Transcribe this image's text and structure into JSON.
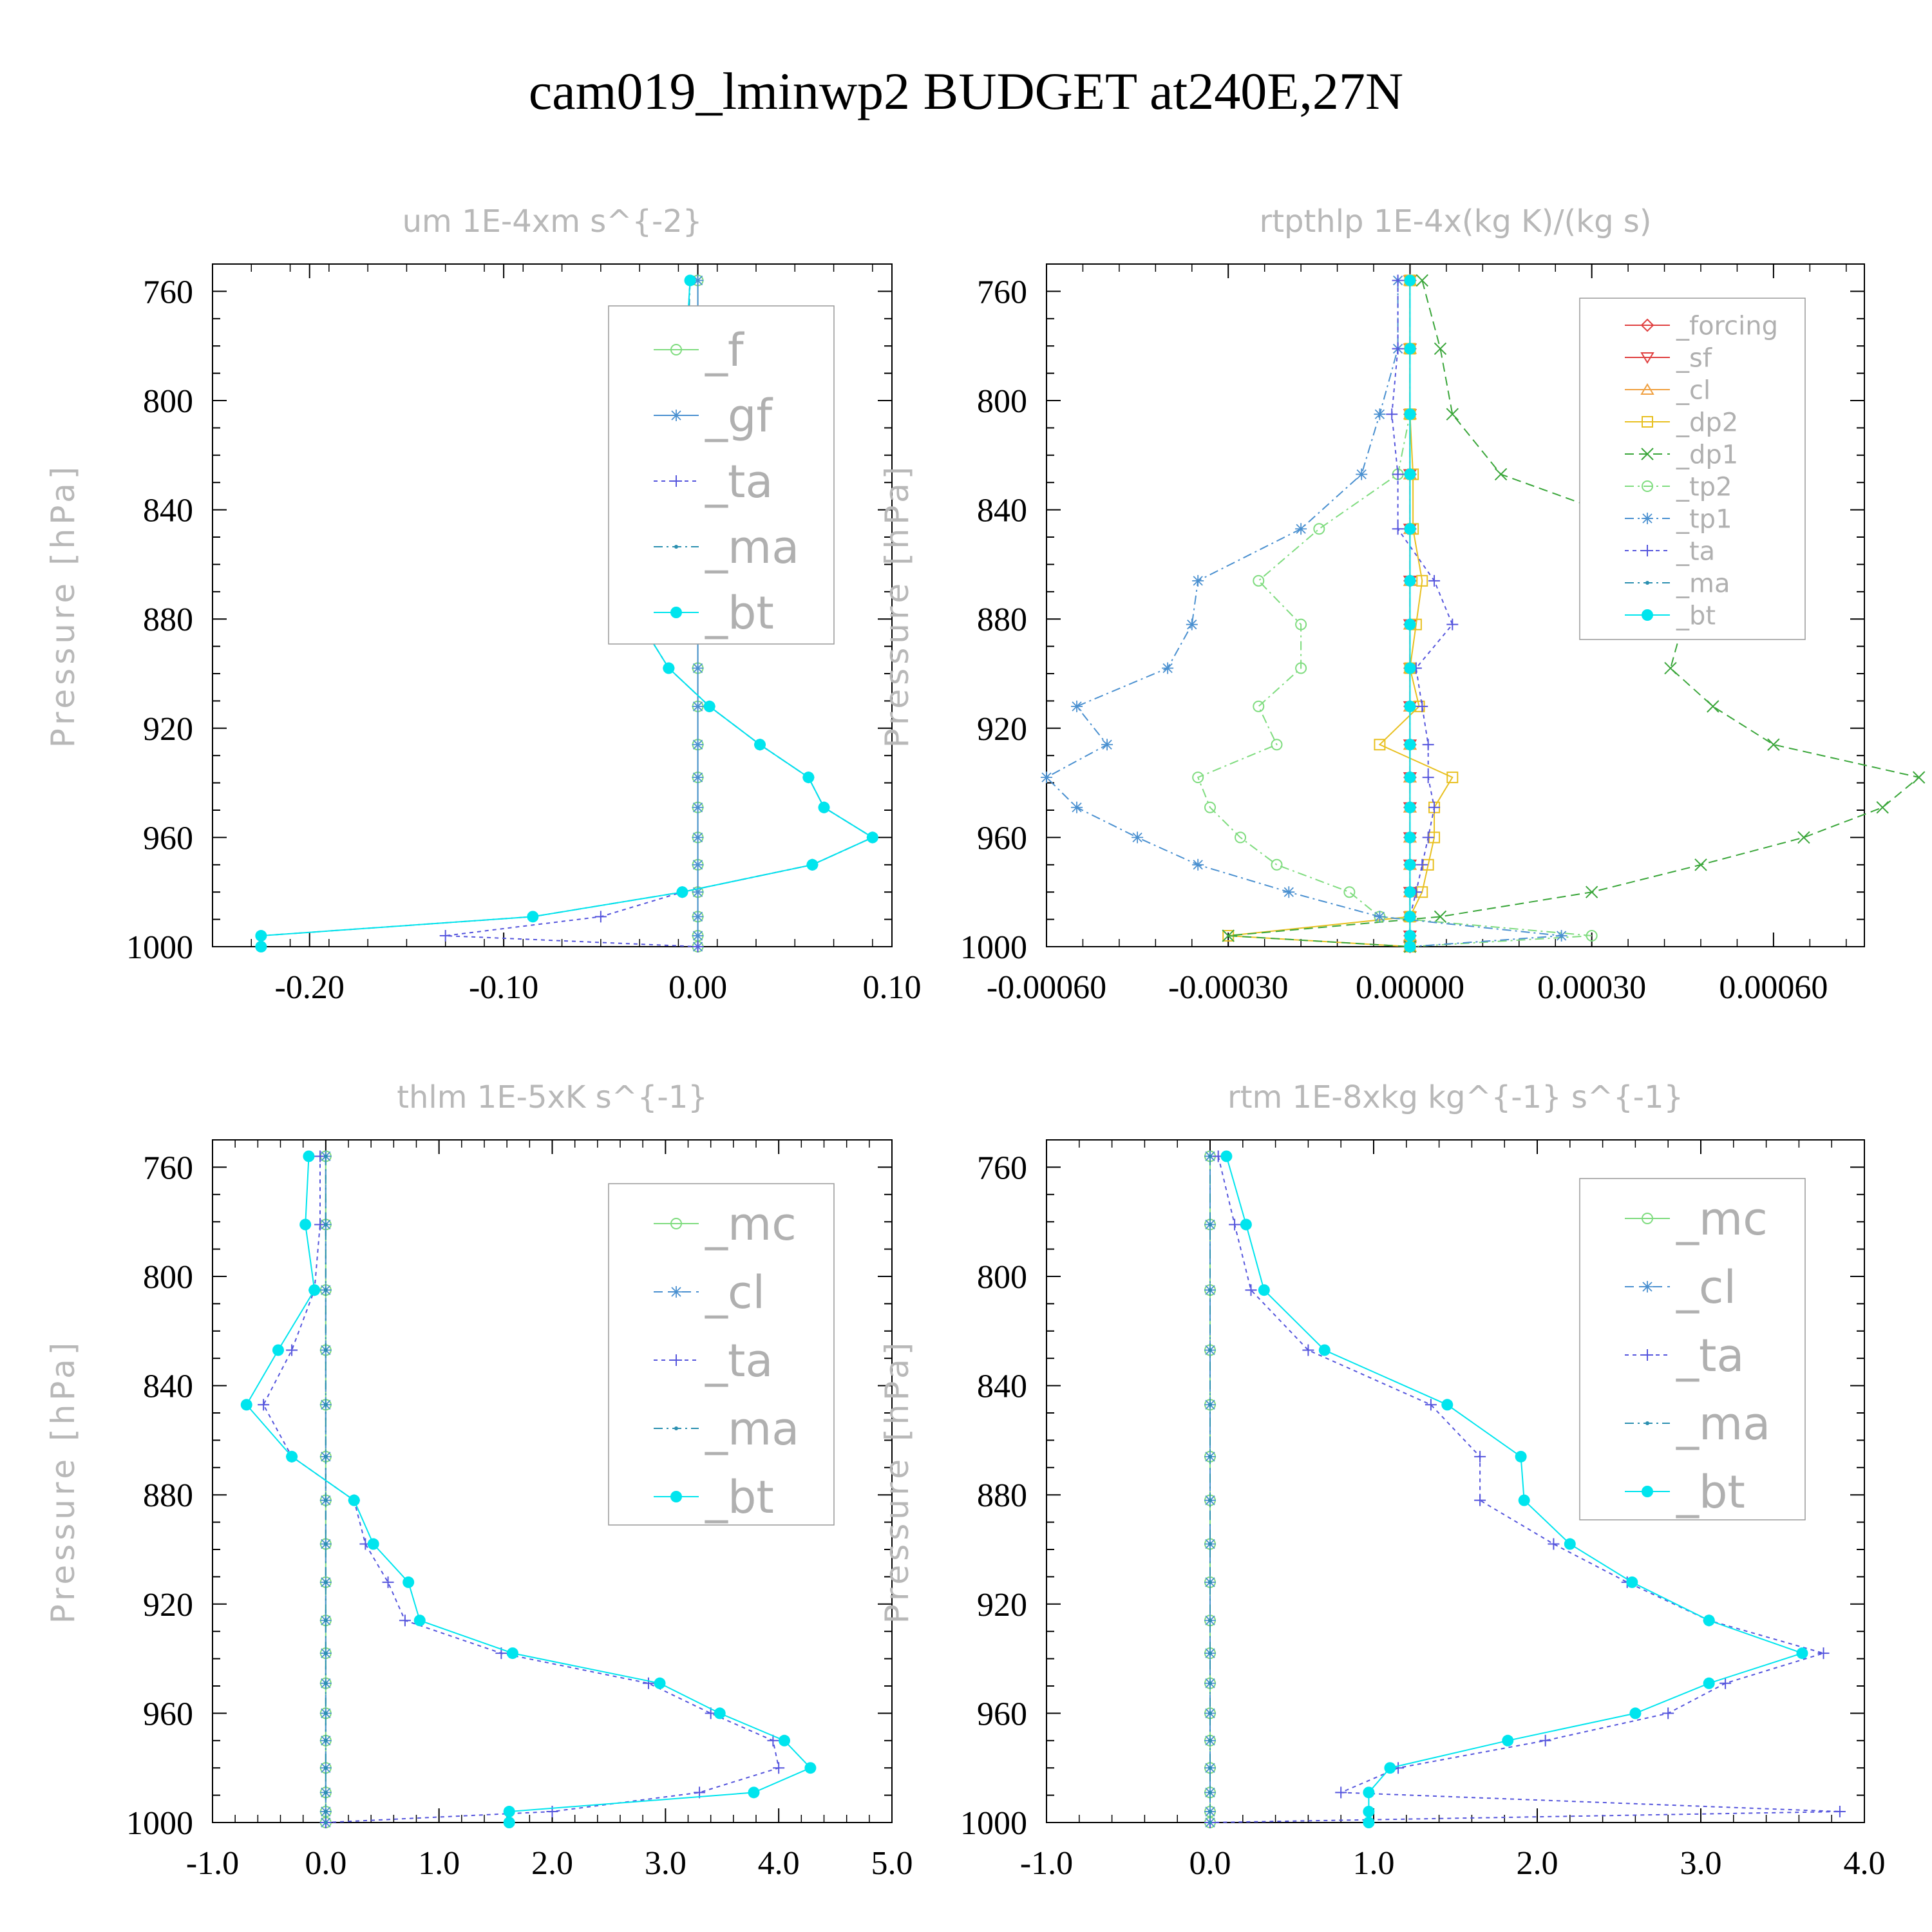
{
  "figure": {
    "title": "cam019_lminwp2  BUDGET at240E,27N"
  },
  "chart_data": [
    {
      "type": "line",
      "title": "um  1E-4xm s^{-2}",
      "ylabel": "Pressure [hPa]",
      "xlim": [
        -0.25,
        0.1
      ],
      "ylim": [
        1000,
        750
      ],
      "y_reversed": true,
      "xticks": [
        -0.2,
        -0.1,
        0.0,
        0.1
      ],
      "xtick_labels": [
        "-0.20",
        "-0.10",
        "0.00",
        "0.10"
      ],
      "yticks": [
        760,
        800,
        840,
        880,
        920,
        960,
        1000
      ],
      "ytick_labels": [
        "760",
        "800",
        "840",
        "880",
        "920",
        "960",
        "1000"
      ],
      "legend_position": "top-right",
      "y": [
        756,
        781,
        805,
        827,
        847,
        866,
        882,
        898,
        912,
        926,
        938,
        949,
        960,
        970,
        980,
        989,
        996,
        1000
      ],
      "series": [
        {
          "name": "_f",
          "color": "#7fdc7f",
          "marker": "circle-open",
          "dash": "",
          "values": [
            0,
            0,
            0,
            0,
            0,
            0,
            0,
            0,
            0,
            0,
            0,
            0,
            0,
            0,
            0,
            0,
            0,
            0
          ]
        },
        {
          "name": "_gf",
          "color": "#4a90d0",
          "marker": "star",
          "dash": "",
          "values": [
            0,
            0,
            0,
            0,
            0,
            0,
            0,
            0,
            0,
            0,
            0,
            0,
            0,
            0,
            0,
            0,
            0,
            0
          ]
        },
        {
          "name": "_ta",
          "color": "#5555dd",
          "marker": "plus",
          "dash": "6,6",
          "values": [
            -0.004,
            -0.006,
            -0.008,
            -0.012,
            -0.022,
            -0.027,
            -0.029,
            -0.015,
            0.006,
            0.032,
            0.057,
            0.065,
            0.09,
            0.059,
            -0.008,
            -0.05,
            -0.13,
            0.0
          ]
        },
        {
          "name": "_ma",
          "color": "#2b8fb0",
          "marker": "dot",
          "dash": "14,6,3,6",
          "values": [
            -0.004,
            -0.005,
            -0.006,
            -0.012,
            -0.022,
            -0.027,
            -0.029,
            -0.015,
            0.006,
            0.032,
            0.057,
            0.065,
            0.09,
            0.059,
            -0.008,
            -0.085,
            -0.225,
            -0.225
          ]
        },
        {
          "name": "_bt",
          "color": "#00e5ee",
          "marker": "disk",
          "dash": "",
          "values": [
            -0.004,
            -0.006,
            -0.007,
            -0.012,
            -0.022,
            -0.027,
            -0.029,
            -0.015,
            0.006,
            0.032,
            0.057,
            0.065,
            0.09,
            0.059,
            -0.008,
            -0.085,
            -0.225,
            -0.225
          ]
        }
      ]
    },
    {
      "type": "line",
      "title": "rtpthlp  1E-4x(kg K)/(kg s)",
      "ylabel": "Pressure [hPa]",
      "xlim": [
        -0.0006,
        0.00075
      ],
      "ylim": [
        1000,
        750
      ],
      "y_reversed": true,
      "xticks": [
        -0.0006,
        -0.0003,
        0.0,
        0.0003,
        0.0006
      ],
      "xtick_labels": [
        "-0.00060",
        "-0.00030",
        "0.00000",
        "0.00030",
        "0.00060"
      ],
      "yticks": [
        760,
        800,
        840,
        880,
        920,
        960,
        1000
      ],
      "ytick_labels": [
        "760",
        "800",
        "840",
        "880",
        "920",
        "960",
        "1000"
      ],
      "legend_position": "top-right",
      "y": [
        756,
        781,
        805,
        827,
        847,
        866,
        882,
        898,
        912,
        926,
        938,
        949,
        960,
        970,
        980,
        989,
        996,
        1000
      ],
      "series": [
        {
          "name": "_forcing",
          "color": "#e04040",
          "marker": "diamond",
          "dash": "",
          "values": [
            0,
            0,
            0,
            0,
            0,
            0,
            0,
            0,
            0,
            0,
            0,
            0,
            0,
            0,
            0,
            0,
            0,
            0
          ]
        },
        {
          "name": "_sf",
          "color": "#e04040",
          "marker": "tri-down",
          "dash": "",
          "values": [
            0,
            0,
            0,
            0,
            0,
            0,
            0,
            0,
            0,
            0,
            0,
            0,
            0,
            0,
            0,
            0,
            0,
            0
          ]
        },
        {
          "name": "_cl",
          "color": "#f0a040",
          "marker": "tri-up",
          "dash": "",
          "values": [
            0,
            0,
            0,
            0,
            0,
            0,
            0,
            0,
            0,
            0,
            0,
            0,
            0,
            0,
            0,
            0,
            0,
            0
          ]
        },
        {
          "name": "_dp2",
          "color": "#e8c020",
          "marker": "square",
          "dash": "",
          "values": [
            0,
            0,
            0,
            5e-06,
            5e-06,
            2e-05,
            1e-05,
            0.0,
            1.5e-05,
            -5e-05,
            7e-05,
            4e-05,
            4e-05,
            3e-05,
            2e-05,
            0.0,
            -0.0003,
            0.0
          ]
        },
        {
          "name": "_dp1",
          "color": "#3aa63a",
          "marker": "x",
          "dash": "14,8",
          "values": [
            2e-05,
            5e-05,
            7e-05,
            0.00015,
            0.0004,
            0.00042,
            0.00045,
            0.00043,
            0.0005,
            0.0006,
            0.00084,
            0.00078,
            0.00065,
            0.00048,
            0.0003,
            5e-05,
            -0.0003,
            0.0
          ]
        },
        {
          "name": "_tp2",
          "color": "#7fdc7f",
          "marker": "circle-open",
          "dash": "14,6,3,6",
          "values": [
            0,
            0,
            0,
            -2e-05,
            -0.00015,
            -0.00025,
            -0.00018,
            -0.00018,
            -0.00025,
            -0.00022,
            -0.00035,
            -0.00033,
            -0.00028,
            -0.00022,
            -0.0001,
            -5e-05,
            0.0003,
            0.0
          ]
        },
        {
          "name": "_tp1",
          "color": "#4a90d0",
          "marker": "star",
          "dash": "14,6,3,6",
          "values": [
            -2e-05,
            -2e-05,
            -5e-05,
            -8e-05,
            -0.00018,
            -0.00035,
            -0.00036,
            -0.0004,
            -0.00055,
            -0.0005,
            -0.0006,
            -0.00055,
            -0.00045,
            -0.00035,
            -0.0002,
            -5e-05,
            0.00025,
            0.0
          ]
        },
        {
          "name": "_ta",
          "color": "#5555dd",
          "marker": "plus",
          "dash": "6,6",
          "values": [
            -2e-05,
            -2e-05,
            -3e-05,
            -2e-05,
            -2e-05,
            4e-05,
            7e-05,
            1e-05,
            2e-05,
            3e-05,
            3e-05,
            4e-05,
            3e-05,
            2e-05,
            1e-05,
            0.0,
            0.0,
            0.0
          ]
        },
        {
          "name": "_ma",
          "color": "#2b8fb0",
          "marker": "dot",
          "dash": "14,6,3,6",
          "values": [
            0,
            0,
            0,
            0,
            0,
            0,
            0,
            0,
            0,
            0,
            0,
            0,
            0,
            0,
            0,
            0,
            0,
            0
          ]
        },
        {
          "name": "_bt",
          "color": "#00e5ee",
          "marker": "disk",
          "dash": "",
          "values": [
            0,
            0,
            0,
            0,
            0,
            0,
            0,
            0,
            0,
            0,
            0,
            0,
            0,
            0,
            0,
            0,
            0,
            0
          ]
        }
      ]
    },
    {
      "type": "line",
      "title": "thlm  1E-5xK s^{-1}",
      "ylabel": "Pressure [hPa]",
      "xlim": [
        -1.0,
        5.0
      ],
      "ylim": [
        1000,
        750
      ],
      "y_reversed": true,
      "xticks": [
        -1.0,
        0.0,
        1.0,
        2.0,
        3.0,
        4.0,
        5.0
      ],
      "xtick_labels": [
        "-1.0",
        "0.0",
        "1.0",
        "2.0",
        "3.0",
        "4.0",
        "5.0"
      ],
      "yticks": [
        760,
        800,
        840,
        880,
        920,
        960,
        1000
      ],
      "ytick_labels": [
        "760",
        "800",
        "840",
        "880",
        "920",
        "960",
        "1000"
      ],
      "legend_position": "top-right",
      "y": [
        756,
        781,
        805,
        827,
        847,
        866,
        882,
        898,
        912,
        926,
        938,
        949,
        960,
        970,
        980,
        989,
        996,
        1000
      ],
      "series": [
        {
          "name": "_mc",
          "color": "#7fdc7f",
          "marker": "circle-open",
          "dash": "",
          "values": [
            0,
            0,
            0,
            0,
            0,
            0,
            0,
            0,
            0,
            0,
            0,
            0,
            0,
            0,
            0,
            0,
            0,
            0
          ]
        },
        {
          "name": "_cl",
          "color": "#4a90d0",
          "marker": "star",
          "dash": "14,8",
          "values": [
            0,
            0,
            0,
            0,
            0,
            0,
            0,
            0,
            0,
            0,
            0,
            0,
            0,
            0,
            0,
            0,
            0,
            0
          ]
        },
        {
          "name": "_ta",
          "color": "#5555dd",
          "marker": "plus",
          "dash": "6,6",
          "values": [
            -0.05,
            -0.05,
            -0.1,
            -0.3,
            -0.55,
            -0.3,
            0.25,
            0.35,
            0.55,
            0.7,
            1.55,
            2.85,
            3.4,
            3.95,
            4.0,
            3.3,
            2.0,
            0.0
          ]
        },
        {
          "name": "_ma",
          "color": "#2b8fb0",
          "marker": "dot",
          "dash": "14,6,3,6",
          "values": [
            0,
            0,
            0,
            0,
            0,
            0,
            0,
            0,
            0,
            0,
            0,
            0,
            0,
            0,
            0,
            0,
            0,
            0
          ]
        },
        {
          "name": "_bt",
          "color": "#00e5ee",
          "marker": "disk",
          "dash": "",
          "values": [
            -0.15,
            -0.18,
            -0.1,
            -0.42,
            -0.7,
            -0.3,
            0.25,
            0.42,
            0.73,
            0.83,
            1.65,
            2.95,
            3.48,
            4.05,
            4.28,
            3.78,
            1.62,
            1.62
          ]
        }
      ]
    },
    {
      "type": "line",
      "title": "rtm  1E-8xkg kg^{-1} s^{-1}",
      "ylabel": "Pressure [hPa]",
      "xlim": [
        -1.0,
        4.0
      ],
      "ylim": [
        1000,
        750
      ],
      "y_reversed": true,
      "xticks": [
        -1.0,
        0.0,
        1.0,
        2.0,
        3.0,
        4.0
      ],
      "xtick_labels": [
        "-1.0",
        "0.0",
        "1.0",
        "2.0",
        "3.0",
        "4.0"
      ],
      "yticks": [
        760,
        800,
        840,
        880,
        920,
        960,
        1000
      ],
      "ytick_labels": [
        "760",
        "800",
        "840",
        "880",
        "920",
        "960",
        "1000"
      ],
      "legend_position": "top-right",
      "y": [
        756,
        781,
        805,
        827,
        847,
        866,
        882,
        898,
        912,
        926,
        938,
        949,
        960,
        970,
        980,
        989,
        996,
        1000
      ],
      "series": [
        {
          "name": "_mc",
          "color": "#7fdc7f",
          "marker": "circle-open",
          "dash": "",
          "values": [
            0,
            0,
            0,
            0,
            0,
            0,
            0,
            0,
            0,
            0,
            0,
            0,
            0,
            0,
            0,
            0,
            0,
            0
          ]
        },
        {
          "name": "_cl",
          "color": "#4a90d0",
          "marker": "star",
          "dash": "14,8",
          "values": [
            0,
            0,
            0,
            0,
            0,
            0,
            0,
            0,
            0,
            0,
            0,
            0,
            0,
            0,
            0,
            0,
            0,
            0
          ]
        },
        {
          "name": "_ta",
          "color": "#5555dd",
          "marker": "plus",
          "dash": "6,6",
          "values": [
            0.05,
            0.15,
            0.25,
            0.6,
            1.35,
            1.65,
            1.65,
            2.1,
            2.55,
            3.05,
            3.75,
            3.15,
            2.8,
            2.05,
            1.15,
            0.8,
            3.85,
            0.0
          ]
        },
        {
          "name": "_ma",
          "color": "#2b8fb0",
          "marker": "dot",
          "dash": "14,6,3,6",
          "values": [
            0,
            0,
            0,
            0,
            0,
            0,
            0,
            0,
            0,
            0,
            0,
            0,
            0,
            0,
            0,
            0,
            0,
            0
          ]
        },
        {
          "name": "_bt",
          "color": "#00e5ee",
          "marker": "disk",
          "dash": "",
          "values": [
            0.1,
            0.22,
            0.33,
            0.7,
            1.45,
            1.9,
            1.92,
            2.2,
            2.58,
            3.05,
            3.62,
            3.05,
            2.6,
            1.82,
            1.1,
            0.97,
            0.97,
            0.97
          ]
        }
      ]
    }
  ]
}
